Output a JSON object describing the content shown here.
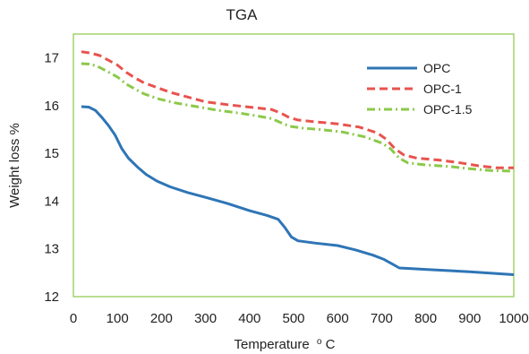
{
  "chart_data": {
    "type": "line",
    "title": "TGA",
    "xlabel": "Temperature",
    "xlabel_unit_prefix": "o",
    "xlabel_unit": "C",
    "ylabel": "Weight loss %",
    "xlim": [
      0,
      1000
    ],
    "ylim": [
      12,
      17.5
    ],
    "x_ticks": [
      0,
      100,
      200,
      300,
      400,
      500,
      600,
      700,
      800,
      900,
      1000
    ],
    "y_ticks": [
      12,
      13,
      14,
      15,
      16,
      17
    ],
    "grid": false,
    "legend_position": "top-right",
    "series": [
      {
        "name": "OPC",
        "color": "#2e75b6",
        "style": "solid",
        "points": [
          [
            18,
            15.98
          ],
          [
            35,
            15.97
          ],
          [
            50,
            15.9
          ],
          [
            65,
            15.75
          ],
          [
            80,
            15.58
          ],
          [
            95,
            15.38
          ],
          [
            110,
            15.1
          ],
          [
            125,
            14.9
          ],
          [
            145,
            14.72
          ],
          [
            165,
            14.56
          ],
          [
            190,
            14.42
          ],
          [
            220,
            14.3
          ],
          [
            260,
            14.18
          ],
          [
            300,
            14.08
          ],
          [
            350,
            13.95
          ],
          [
            400,
            13.8
          ],
          [
            440,
            13.7
          ],
          [
            465,
            13.62
          ],
          [
            480,
            13.45
          ],
          [
            495,
            13.25
          ],
          [
            510,
            13.17
          ],
          [
            550,
            13.12
          ],
          [
            600,
            13.07
          ],
          [
            640,
            12.98
          ],
          [
            680,
            12.87
          ],
          [
            705,
            12.78
          ],
          [
            725,
            12.68
          ],
          [
            740,
            12.6
          ],
          [
            800,
            12.57
          ],
          [
            900,
            12.52
          ],
          [
            1000,
            12.46
          ]
        ]
      },
      {
        "name": "OPC-1",
        "color": "#e8534e",
        "style": "dash",
        "points": [
          [
            18,
            17.13
          ],
          [
            40,
            17.1
          ],
          [
            60,
            17.05
          ],
          [
            80,
            16.95
          ],
          [
            100,
            16.85
          ],
          [
            120,
            16.7
          ],
          [
            140,
            16.58
          ],
          [
            160,
            16.48
          ],
          [
            190,
            16.38
          ],
          [
            220,
            16.28
          ],
          [
            260,
            16.18
          ],
          [
            300,
            16.08
          ],
          [
            350,
            16.02
          ],
          [
            400,
            15.97
          ],
          [
            450,
            15.92
          ],
          [
            470,
            15.85
          ],
          [
            490,
            15.75
          ],
          [
            510,
            15.7
          ],
          [
            550,
            15.66
          ],
          [
            600,
            15.62
          ],
          [
            650,
            15.55
          ],
          [
            690,
            15.43
          ],
          [
            710,
            15.3
          ],
          [
            730,
            15.1
          ],
          [
            750,
            14.97
          ],
          [
            780,
            14.9
          ],
          [
            830,
            14.86
          ],
          [
            880,
            14.8
          ],
          [
            920,
            14.74
          ],
          [
            960,
            14.7
          ],
          [
            1000,
            14.7
          ]
        ]
      },
      {
        "name": "OPC-1.5",
        "color": "#8cc94a",
        "style": "dashdot",
        "points": [
          [
            18,
            16.88
          ],
          [
            40,
            16.87
          ],
          [
            60,
            16.8
          ],
          [
            80,
            16.7
          ],
          [
            100,
            16.6
          ],
          [
            120,
            16.45
          ],
          [
            140,
            16.35
          ],
          [
            160,
            16.25
          ],
          [
            190,
            16.15
          ],
          [
            230,
            16.06
          ],
          [
            280,
            15.98
          ],
          [
            330,
            15.9
          ],
          [
            380,
            15.84
          ],
          [
            420,
            15.78
          ],
          [
            450,
            15.73
          ],
          [
            470,
            15.65
          ],
          [
            490,
            15.57
          ],
          [
            520,
            15.53
          ],
          [
            560,
            15.5
          ],
          [
            610,
            15.45
          ],
          [
            660,
            15.35
          ],
          [
            700,
            15.22
          ],
          [
            720,
            15.1
          ],
          [
            740,
            14.9
          ],
          [
            760,
            14.8
          ],
          [
            800,
            14.76
          ],
          [
            850,
            14.73
          ],
          [
            900,
            14.68
          ],
          [
            950,
            14.64
          ],
          [
            1000,
            14.63
          ]
        ]
      }
    ]
  }
}
